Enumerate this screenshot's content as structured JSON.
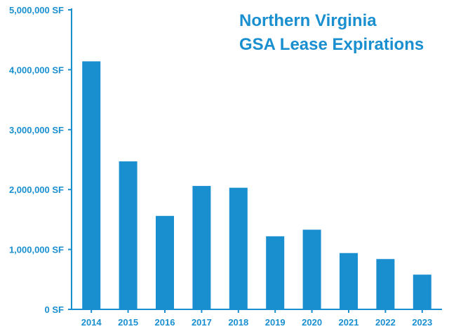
{
  "chart_data": {
    "type": "bar",
    "title": [
      "Northern Virginia",
      "GSA Lease Expirations"
    ],
    "xlabel": "",
    "ylabel": "",
    "categories": [
      "2014",
      "2015",
      "2016",
      "2017",
      "2018",
      "2019",
      "2020",
      "2021",
      "2022",
      "2023"
    ],
    "series": [
      {
        "values": [
          4140000,
          2470000,
          1560000,
          2060000,
          2030000,
          1220000,
          1330000,
          940000,
          840000,
          580000
        ]
      }
    ],
    "ylim": [
      0,
      5000000
    ],
    "yticks": [
      0,
      1000000,
      2000000,
      3000000,
      4000000,
      5000000
    ],
    "ytick_labels": [
      "0 SF",
      "1,000,000 SF",
      "2,000,000 SF",
      "3,000,000 SF",
      "4,000,000 SF",
      "5,000,000 SF"
    ],
    "grid": false,
    "colors": {
      "bar": "#1a8fd0",
      "axis": "#1a8fd0",
      "text": "#1a8fd0"
    }
  }
}
